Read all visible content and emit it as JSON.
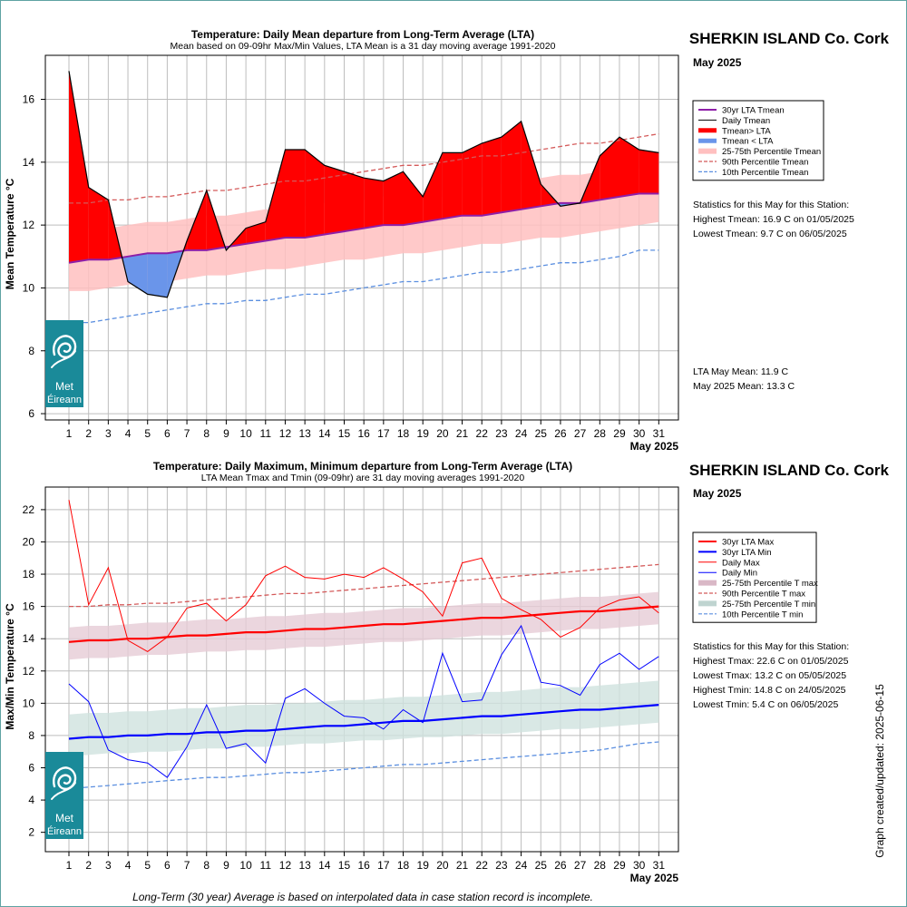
{
  "footer_note": "Long-Term (30 year) Average is based on interpolated data in case station record is incomplete.",
  "created_label": "Graph created/updated:  2025-06-15",
  "logo": {
    "icon": "met-eireann-spiral-logo",
    "text1": "Met",
    "text2": "Éireann",
    "color": "#1a8a99"
  },
  "colors": {
    "lta_mean": "#8e1fa8",
    "above": "#ff0000",
    "below": "#6a95ea",
    "band_mean": "#ffc0c0",
    "p90": "#d45a5a",
    "p10": "#5b8fe0",
    "max": "#ff0000",
    "min": "#0000ff",
    "band_max": "#e6ccd6",
    "band_min": "#cfe2df"
  },
  "charts": [
    {
      "title": "Temperature: Daily Mean departure from Long-Term Average (LTA)",
      "subtitle": "Mean based on 09-09hr Max/Min Values, LTA Mean is a 31 day moving average 1991-2020",
      "station": "SHERKIN ISLAND Co. Cork",
      "month": "May 2025",
      "xlabel": "May 2025",
      "ylabel": "Mean Temperature °C",
      "stats_header": "Statistics for this May for this Station:",
      "stats": [
        "Highest Tmean: 16.9 C on 01/05/2025",
        "Lowest Tmean: 9.7 C on 06/05/2025"
      ],
      "stats2": [
        "LTA May Mean: 11.9 C",
        "May 2025 Mean: 13.3 C"
      ],
      "legend": [
        {
          "label": "30yr LTA Tmean",
          "style": "lta"
        },
        {
          "label": "Daily Tmean",
          "style": "daily"
        },
        {
          "label": "Tmean> LTA",
          "style": "above"
        },
        {
          "label": "Tmean < LTA",
          "style": "below"
        },
        {
          "label": "25-75th Percentile Tmean",
          "style": "band"
        },
        {
          "label": "90th Percentile Tmean",
          "style": "p90"
        },
        {
          "label": "10th Percentile Tmean",
          "style": "p10"
        }
      ]
    },
    {
      "title": "Temperature: Daily Maximum, Minimum departure from Long-Term Average (LTA)",
      "subtitle": "LTA Mean Tmax and Tmin (09-09hr) are 31 day moving averages 1991-2020",
      "station": "SHERKIN ISLAND Co. Cork",
      "month": "May 2025",
      "xlabel": "May 2025",
      "ylabel": "Max/Min Temperature °C",
      "stats_header": "Statistics for this May for this Station:",
      "stats": [
        "Highest Tmax: 22.6 C on 01/05/2025",
        "Lowest Tmax: 13.2 C on 05/05/2025",
        "Highest Tmin: 14.8 C on 24/05/2025",
        "Lowest Tmin: 5.4 C on 06/05/2025"
      ],
      "stats2": [],
      "legend": [
        {
          "label": "30yr LTA Max",
          "style": "ltamax"
        },
        {
          "label": "30yr LTA Min",
          "style": "ltamin"
        },
        {
          "label": "Daily Max",
          "style": "dmax"
        },
        {
          "label": "Daily Min",
          "style": "dmin"
        },
        {
          "label": "25-75th Percentile T max",
          "style": "bandmax"
        },
        {
          "label": "90th Percentile T max",
          "style": "p90"
        },
        {
          "label": "25-75th Percentile T min",
          "style": "bandmin"
        },
        {
          "label": "10th Percentile T min",
          "style": "p10"
        }
      ]
    }
  ],
  "chart_data": [
    {
      "type": "line",
      "x": [
        1,
        2,
        3,
        4,
        5,
        6,
        7,
        8,
        9,
        10,
        11,
        12,
        13,
        14,
        15,
        16,
        17,
        18,
        19,
        20,
        21,
        22,
        23,
        24,
        25,
        26,
        27,
        28,
        29,
        30,
        31
      ],
      "xlim": [
        -0.2,
        32
      ],
      "ylim": [
        5.8,
        17.4
      ],
      "yticks": [
        6,
        8,
        10,
        12,
        14,
        16
      ],
      "grid": true,
      "series": [
        {
          "name": "Daily Tmean",
          "values": [
            16.9,
            13.2,
            12.8,
            10.2,
            9.8,
            9.7,
            11.5,
            13.1,
            11.2,
            11.9,
            12.1,
            14.4,
            14.4,
            13.9,
            13.7,
            13.5,
            13.4,
            13.7,
            12.9,
            14.3,
            14.3,
            14.6,
            14.8,
            15.3,
            13.3,
            12.6,
            12.7,
            14.2,
            14.8,
            14.4,
            14.3
          ]
        },
        {
          "name": "30yr LTA Tmean",
          "values": [
            10.8,
            10.9,
            10.9,
            11.0,
            11.1,
            11.1,
            11.2,
            11.2,
            11.3,
            11.4,
            11.5,
            11.6,
            11.6,
            11.7,
            11.8,
            11.9,
            12.0,
            12.0,
            12.1,
            12.2,
            12.3,
            12.3,
            12.4,
            12.5,
            12.6,
            12.7,
            12.7,
            12.8,
            12.9,
            13.0,
            13.0
          ]
        },
        {
          "name": "25th Percentile Tmean",
          "values": [
            9.9,
            9.9,
            10.0,
            10.1,
            10.2,
            10.2,
            10.3,
            10.4,
            10.4,
            10.5,
            10.6,
            10.6,
            10.7,
            10.8,
            10.9,
            10.9,
            11.0,
            11.1,
            11.1,
            11.2,
            11.3,
            11.4,
            11.4,
            11.5,
            11.6,
            11.6,
            11.7,
            11.8,
            11.9,
            12.0,
            12.1
          ]
        },
        {
          "name": "75th Percentile Tmean",
          "values": [
            11.8,
            11.9,
            11.9,
            12.0,
            12.1,
            12.1,
            12.2,
            12.3,
            12.3,
            12.4,
            12.5,
            12.5,
            12.6,
            12.7,
            12.7,
            12.8,
            12.9,
            13.0,
            13.0,
            13.1,
            13.2,
            13.2,
            13.3,
            13.4,
            13.5,
            13.6,
            13.6,
            13.7,
            13.8,
            13.8,
            13.9
          ]
        },
        {
          "name": "90th Percentile Tmean",
          "values": [
            12.7,
            12.7,
            12.8,
            12.8,
            12.9,
            12.9,
            13.0,
            13.1,
            13.1,
            13.2,
            13.3,
            13.4,
            13.4,
            13.5,
            13.6,
            13.7,
            13.8,
            13.9,
            13.9,
            14.0,
            14.1,
            14.2,
            14.2,
            14.3,
            14.4,
            14.5,
            14.6,
            14.6,
            14.7,
            14.8,
            14.9
          ]
        },
        {
          "name": "10th Percentile Tmean",
          "values": [
            8.9,
            8.9,
            9.0,
            9.1,
            9.2,
            9.3,
            9.4,
            9.5,
            9.5,
            9.6,
            9.6,
            9.7,
            9.8,
            9.8,
            9.9,
            10.0,
            10.1,
            10.2,
            10.2,
            10.3,
            10.4,
            10.5,
            10.5,
            10.6,
            10.7,
            10.8,
            10.8,
            10.9,
            11.0,
            11.2,
            11.2
          ]
        }
      ]
    },
    {
      "type": "line",
      "x": [
        1,
        2,
        3,
        4,
        5,
        6,
        7,
        8,
        9,
        10,
        11,
        12,
        13,
        14,
        15,
        16,
        17,
        18,
        19,
        20,
        21,
        22,
        23,
        24,
        25,
        26,
        27,
        28,
        29,
        30,
        31
      ],
      "xlim": [
        -0.2,
        32
      ],
      "ylim": [
        0.8,
        23.4
      ],
      "yticks": [
        2,
        4,
        6,
        8,
        10,
        12,
        14,
        16,
        18,
        20,
        22
      ],
      "grid": true,
      "series": [
        {
          "name": "Daily Max",
          "values": [
            22.6,
            16.1,
            18.4,
            13.9,
            13.2,
            14.1,
            15.9,
            16.2,
            15.1,
            16.1,
            17.9,
            18.5,
            17.8,
            17.7,
            18.0,
            17.8,
            18.4,
            17.7,
            16.9,
            15.4,
            18.7,
            19.0,
            16.5,
            15.8,
            15.2,
            14.1,
            14.7,
            15.9,
            16.4,
            16.6,
            15.6
          ]
        },
        {
          "name": "Daily Min",
          "values": [
            11.2,
            10.1,
            7.1,
            6.5,
            6.3,
            5.4,
            7.3,
            9.9,
            7.2,
            7.5,
            6.3,
            10.3,
            10.9,
            10.0,
            9.2,
            9.1,
            8.4,
            9.6,
            8.8,
            13.1,
            10.1,
            10.2,
            13.0,
            14.8,
            11.3,
            11.1,
            10.5,
            12.4,
            13.1,
            12.1,
            12.9
          ]
        },
        {
          "name": "30yr LTA Max",
          "values": [
            13.8,
            13.9,
            13.9,
            14.0,
            14.0,
            14.1,
            14.2,
            14.2,
            14.3,
            14.4,
            14.4,
            14.5,
            14.6,
            14.6,
            14.7,
            14.8,
            14.9,
            14.9,
            15.0,
            15.1,
            15.2,
            15.3,
            15.3,
            15.4,
            15.5,
            15.6,
            15.7,
            15.7,
            15.8,
            15.9,
            16.0
          ]
        },
        {
          "name": "30yr LTA Min",
          "values": [
            7.8,
            7.9,
            7.9,
            8.0,
            8.0,
            8.1,
            8.1,
            8.2,
            8.2,
            8.3,
            8.3,
            8.4,
            8.5,
            8.6,
            8.6,
            8.7,
            8.8,
            8.9,
            8.9,
            9.0,
            9.1,
            9.2,
            9.2,
            9.3,
            9.4,
            9.5,
            9.6,
            9.6,
            9.7,
            9.8,
            9.9
          ]
        },
        {
          "name": "25th Percentile T max",
          "values": [
            12.7,
            12.8,
            12.8,
            12.9,
            13.0,
            13.0,
            13.1,
            13.2,
            13.2,
            13.3,
            13.3,
            13.4,
            13.5,
            13.5,
            13.6,
            13.7,
            13.8,
            13.8,
            13.9,
            14.0,
            14.1,
            14.2,
            14.2,
            14.3,
            14.4,
            14.5,
            14.6,
            14.6,
            14.7,
            14.8,
            14.9
          ]
        },
        {
          "name": "75th Percentile T max",
          "values": [
            14.7,
            14.8,
            14.8,
            14.9,
            15.0,
            15.0,
            15.1,
            15.2,
            15.2,
            15.3,
            15.4,
            15.4,
            15.5,
            15.6,
            15.6,
            15.7,
            15.8,
            15.9,
            15.9,
            16.0,
            16.1,
            16.2,
            16.2,
            16.3,
            16.4,
            16.5,
            16.6,
            16.6,
            16.7,
            16.8,
            16.9
          ]
        },
        {
          "name": "25th Percentile T min",
          "values": [
            6.7,
            6.8,
            6.9,
            6.9,
            7.0,
            7.0,
            7.1,
            7.2,
            7.2,
            7.3,
            7.3,
            7.4,
            7.5,
            7.5,
            7.6,
            7.7,
            7.7,
            7.8,
            7.9,
            7.9,
            8.0,
            8.1,
            8.1,
            8.2,
            8.3,
            8.4,
            8.4,
            8.5,
            8.6,
            8.7,
            8.8
          ]
        },
        {
          "name": "75th Percentile T min",
          "values": [
            9.3,
            9.4,
            9.4,
            9.5,
            9.5,
            9.6,
            9.7,
            9.7,
            9.8,
            9.9,
            9.9,
            10.0,
            10.0,
            10.1,
            10.2,
            10.2,
            10.3,
            10.4,
            10.4,
            10.5,
            10.6,
            10.7,
            10.7,
            10.8,
            10.9,
            11.0,
            11.0,
            11.1,
            11.2,
            11.3,
            11.4
          ]
        },
        {
          "name": "90th Percentile T max",
          "values": [
            16.0,
            16.0,
            16.1,
            16.1,
            16.2,
            16.2,
            16.3,
            16.4,
            16.5,
            16.6,
            16.7,
            16.8,
            16.8,
            16.9,
            17.0,
            17.1,
            17.2,
            17.3,
            17.4,
            17.5,
            17.6,
            17.7,
            17.8,
            17.9,
            18.0,
            18.1,
            18.2,
            18.3,
            18.4,
            18.5,
            18.6
          ]
        },
        {
          "name": "10th Percentile T min",
          "values": [
            4.7,
            4.8,
            4.9,
            5.0,
            5.1,
            5.2,
            5.3,
            5.4,
            5.4,
            5.5,
            5.6,
            5.7,
            5.7,
            5.8,
            5.9,
            6.0,
            6.1,
            6.2,
            6.2,
            6.3,
            6.4,
            6.5,
            6.6,
            6.7,
            6.8,
            6.9,
            7.0,
            7.1,
            7.3,
            7.5,
            7.6
          ]
        }
      ]
    }
  ]
}
